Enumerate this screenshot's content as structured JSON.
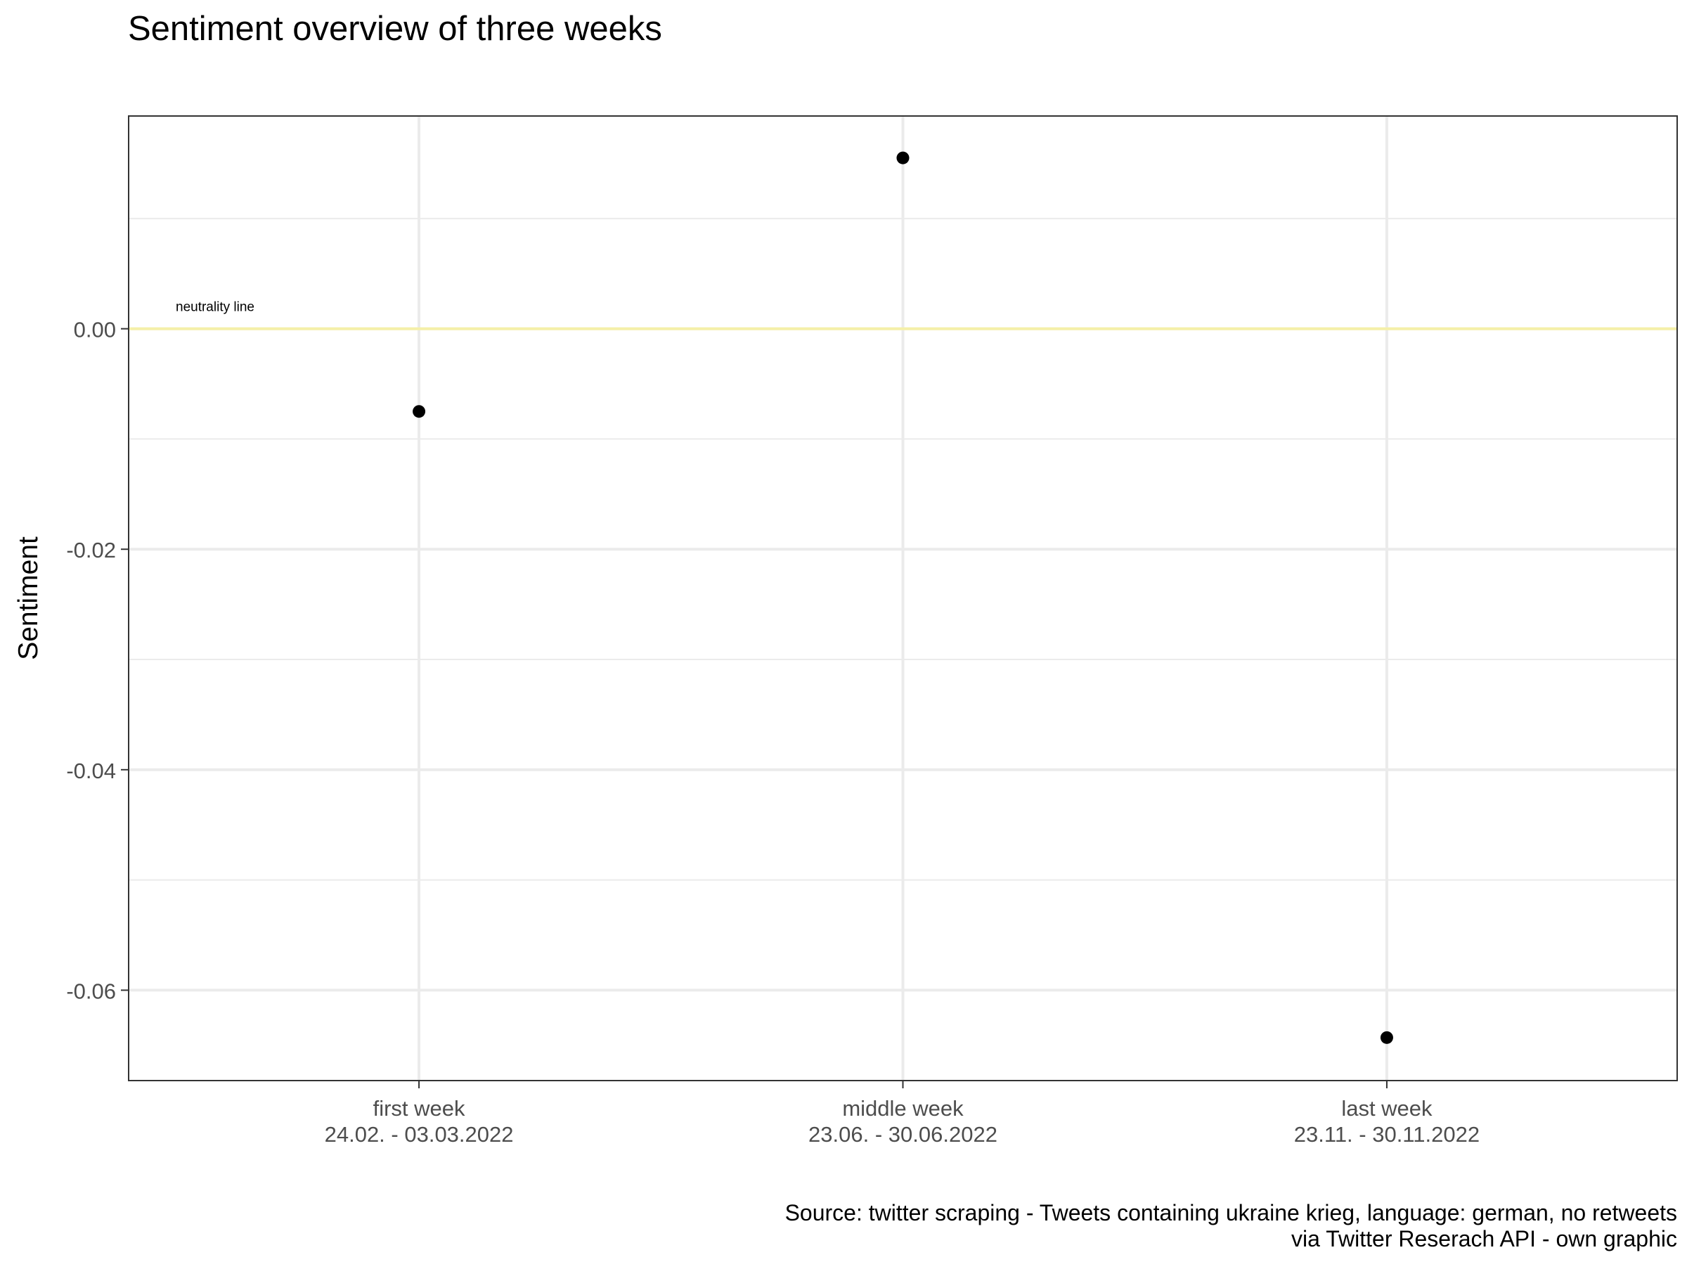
{
  "chart_data": {
    "type": "scatter",
    "title": "Sentiment overview of three weeks",
    "xlabel": "",
    "ylabel": "Sentiment",
    "categories": [
      [
        "first week",
        "24.02. - 03.03.2022"
      ],
      [
        "middle week",
        "23.06. - 30.06.2022"
      ],
      [
        "last week",
        "23.11. - 30.11.2022"
      ]
    ],
    "values": [
      -0.0075,
      0.0155,
      -0.0643
    ],
    "ylim": [
      -0.0682,
      0.0193
    ],
    "yticks": [
      0.0,
      -0.02,
      -0.04,
      -0.06
    ],
    "ytick_labels": [
      "0.00",
      "-0.02",
      "-0.04",
      "-0.06"
    ],
    "y_minor_ticks": [
      0.01,
      -0.01,
      -0.03,
      -0.05
    ],
    "reference_line": {
      "y": 0.0,
      "label": "neutrality line",
      "color": "#f5f0a8"
    },
    "grid": true,
    "caption": [
      "Source: twitter scraping - Tweets containing ukraine krieg, language: german, no retweets ",
      "via Twitter Reserach API - own graphic"
    ],
    "point_color": "#000000",
    "grid_color": "#ebebeb",
    "panel_border_color": "#333333"
  }
}
